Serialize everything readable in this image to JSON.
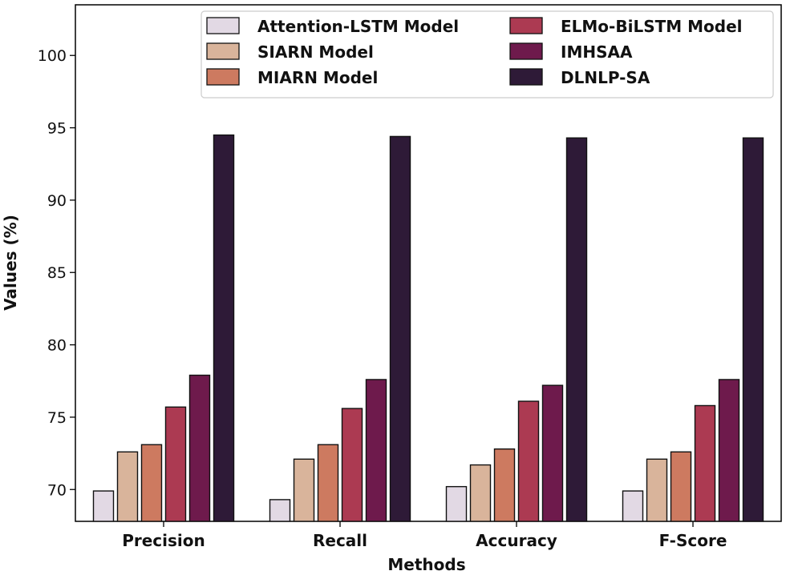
{
  "chart_data": {
    "type": "bar",
    "title": "",
    "xlabel": "Methods",
    "ylabel": "Values (%)",
    "ylim": [
      67.8,
      103.5
    ],
    "yticks": [
      70,
      75,
      80,
      85,
      90,
      95,
      100
    ],
    "ytick_labels": [
      "70",
      "75",
      "80",
      "85",
      "90",
      "95",
      "100"
    ],
    "categories": [
      "Precision",
      "Recall",
      "Accuracy",
      "F-Score"
    ],
    "legend_position": "top-right",
    "series": [
      {
        "name": "Attention-LSTM Model",
        "color": "#e2d9e4",
        "values": [
          69.9,
          69.3,
          70.2,
          69.9
        ]
      },
      {
        "name": "SIARN Model",
        "color": "#d9b49b",
        "values": [
          72.6,
          72.1,
          71.7,
          72.1
        ]
      },
      {
        "name": "MIARN Model",
        "color": "#cd7a60",
        "values": [
          73.1,
          73.1,
          72.8,
          72.6
        ]
      },
      {
        "name": "ELMo-BiLSTM Model",
        "color": "#ac3a52",
        "values": [
          75.7,
          75.6,
          76.1,
          75.8
        ]
      },
      {
        "name": "IMHSAA",
        "color": "#6e1a4c",
        "values": [
          77.9,
          77.6,
          77.2,
          77.6
        ]
      },
      {
        "name": "DLNLP-SA",
        "color": "#2e1a37",
        "values": [
          94.5,
          94.4,
          94.3,
          94.3
        ]
      }
    ]
  }
}
